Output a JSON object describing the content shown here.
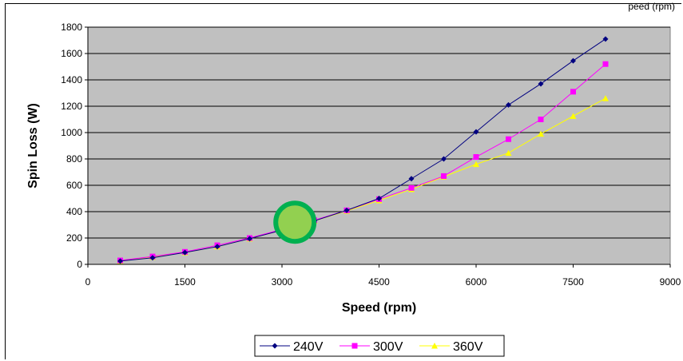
{
  "corner_text": "peed (rpm)",
  "chart_data": {
    "type": "line",
    "title": "",
    "xlabel": "Speed (rpm)",
    "ylabel": "Spin Loss (W)",
    "xlim": [
      0,
      9000
    ],
    "ylim": [
      0,
      1800
    ],
    "x_ticks": [
      "0",
      "1500",
      "3000",
      "4500",
      "6000",
      "7500",
      "9000"
    ],
    "y_ticks": [
      "0",
      "200",
      "400",
      "600",
      "800",
      "1000",
      "1200",
      "1400",
      "1600",
      "1800"
    ],
    "grid": true,
    "plot_background": "#c0c0c0",
    "legend_position": "bottom",
    "x": [
      500,
      1000,
      1500,
      2000,
      2500,
      3000,
      3500,
      4000,
      4500,
      5000,
      5500,
      6000,
      6500,
      7000,
      7500,
      8000
    ],
    "series": [
      {
        "name": "240V",
        "color": "#000080",
        "marker": "diamond",
        "values": [
          25,
          50,
          90,
          135,
          195,
          260,
          330,
          410,
          500,
          650,
          800,
          1005,
          1210,
          1370,
          1545,
          1710
        ]
      },
      {
        "name": "300V",
        "color": "#ff00ff",
        "marker": "square",
        "values": [
          30,
          60,
          95,
          145,
          200,
          265,
          335,
          410,
          495,
          580,
          670,
          815,
          950,
          1100,
          1310,
          1520
        ]
      },
      {
        "name": "360V",
        "color": "#ffff00",
        "marker": "triangle",
        "values": [
          25,
          55,
          90,
          135,
          195,
          260,
          330,
          405,
          485,
          570,
          665,
          760,
          845,
          990,
          1125,
          1260
        ]
      }
    ],
    "annotation": {
      "type": "circle",
      "x": 3200,
      "y": 320,
      "fill": "#92d050",
      "stroke": "#00b050"
    }
  }
}
